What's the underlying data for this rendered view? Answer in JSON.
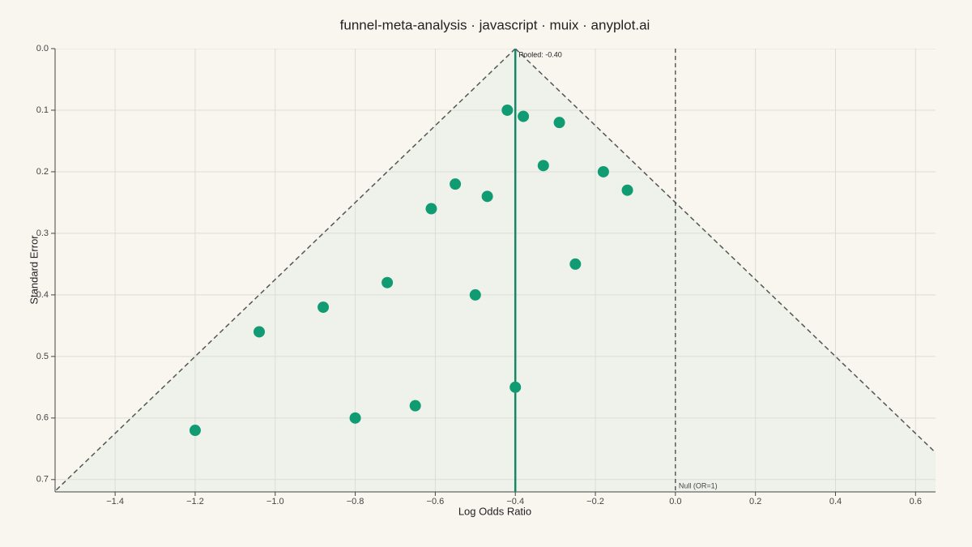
{
  "chart_data": {
    "type": "scatter",
    "title": "funnel-meta-analysis · javascript · muix · anyplot.ai",
    "x_label": "Log Odds Ratio",
    "y_label": "Standard Error",
    "x": [
      -0.42,
      -0.38,
      -0.29,
      -0.33,
      -0.18,
      -0.12,
      -0.55,
      -0.47,
      -0.61,
      -0.25,
      -0.72,
      -0.5,
      -0.88,
      -1.04,
      -0.4,
      -0.65,
      -0.8,
      -1.2
    ],
    "values": [
      0.1,
      0.11,
      0.12,
      0.19,
      0.2,
      0.23,
      0.22,
      0.24,
      0.26,
      0.35,
      0.38,
      0.4,
      0.42,
      0.46,
      0.55,
      0.58,
      0.6,
      0.62
    ],
    "color": "#109b72",
    "pooled": {
      "value": -0.4,
      "label": "Pooled: -0.40"
    },
    "null_line": {
      "value": 0,
      "label": "Null (OR=1)"
    },
    "funnel_z": 1.6,
    "xlim": [
      -1.55,
      0.65
    ],
    "ylim": [
      0,
      0.72
    ],
    "y_inverted": true,
    "xticks": [
      {
        "value": -1.4,
        "label": "−1.4"
      },
      {
        "value": -1.2,
        "label": "−1.2"
      },
      {
        "value": -1.0,
        "label": "−1.0"
      },
      {
        "value": -0.8,
        "label": "−0.8"
      },
      {
        "value": -0.6,
        "label": "−0.6"
      },
      {
        "value": -0.4,
        "label": "−0.4"
      },
      {
        "value": -0.2,
        "label": "−0.2"
      },
      {
        "value": 0,
        "label": "0.0"
      },
      0.2,
      0.4,
      0.6
    ],
    "yticks": [
      {
        "value": 0,
        "label": "0.0"
      },
      0.1,
      0.2,
      0.3,
      0.4,
      0.5,
      0.6,
      0.7
    ],
    "grid": true
  }
}
